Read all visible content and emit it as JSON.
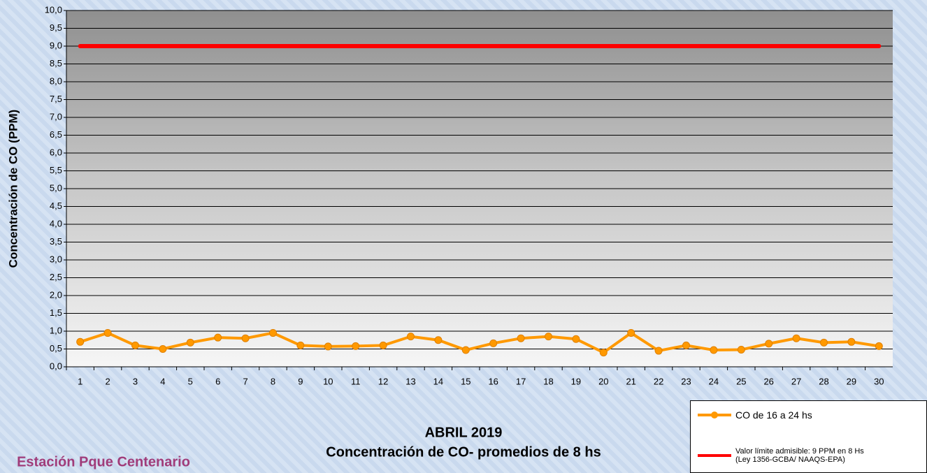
{
  "chart_data": {
    "type": "line",
    "title": "ABRIL 2019",
    "subtitle": "Concentración de CO- promedios de 8 hs",
    "y_label": "Concentración de CO (PPM)",
    "station": "Estación Pque Centenario",
    "categories": [
      "1",
      "2",
      "3",
      "4",
      "5",
      "6",
      "7",
      "8",
      "9",
      "10",
      "11",
      "12",
      "13",
      "14",
      "15",
      "16",
      "17",
      "18",
      "19",
      "20",
      "21",
      "22",
      "23",
      "24",
      "25",
      "26",
      "27",
      "28",
      "29",
      "30"
    ],
    "series": [
      {
        "name": "CO de 16 a 24 hs",
        "color": "#ff9900",
        "marker": true,
        "values": [
          0.7,
          0.95,
          0.6,
          0.5,
          0.68,
          0.82,
          0.8,
          0.95,
          0.6,
          0.57,
          0.58,
          0.6,
          0.85,
          0.75,
          0.47,
          0.66,
          0.8,
          0.85,
          0.78,
          0.4,
          0.95,
          0.45,
          0.6,
          0.47,
          0.48,
          0.65,
          0.8,
          0.68,
          0.7,
          0.58
        ]
      },
      {
        "name": "Valor límite admisible: 9 PPM en 8 Hs\n(Ley 1356-GCBA/ NAAQS-EPA)",
        "color": "#ff0000",
        "marker": false,
        "values": [
          9,
          9,
          9,
          9,
          9,
          9,
          9,
          9,
          9,
          9,
          9,
          9,
          9,
          9,
          9,
          9,
          9,
          9,
          9,
          9,
          9,
          9,
          9,
          9,
          9,
          9,
          9,
          9,
          9,
          9
        ]
      }
    ],
    "ylim": [
      0,
      10
    ],
    "yticks": [
      {
        "value": 0,
        "label": "0,0"
      },
      {
        "value": 0.5,
        "label": "0,5"
      },
      {
        "value": 1,
        "label": "1,0"
      },
      {
        "value": 1.5,
        "label": "1,5"
      },
      {
        "value": 2,
        "label": "2,0"
      },
      {
        "value": 2.5,
        "label": "2,5"
      },
      {
        "value": 3,
        "label": "3,0"
      },
      {
        "value": 3.5,
        "label": "3,5"
      },
      {
        "value": 4,
        "label": "4,0"
      },
      {
        "value": 4.5,
        "label": "4,5"
      },
      {
        "value": 5,
        "label": "5,0"
      },
      {
        "value": 5.5,
        "label": "5,5"
      },
      {
        "value": 6,
        "label": "6,0"
      },
      {
        "value": 6.5,
        "label": "6,5"
      },
      {
        "value": 7,
        "label": "7,0"
      },
      {
        "value": 7.5,
        "label": "7,5"
      },
      {
        "value": 8,
        "label": "8,0"
      },
      {
        "value": 8.5,
        "label": "8,5"
      },
      {
        "value": 9,
        "label": "9,0"
      },
      {
        "value": 9.5,
        "label": "9,5"
      },
      {
        "value": 10,
        "label": "10,0"
      }
    ],
    "grid": true
  }
}
